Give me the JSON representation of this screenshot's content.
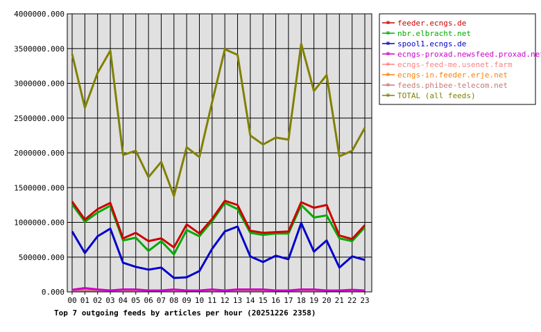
{
  "chart_data": {
    "type": "line",
    "title": "Top 7 outgoing feeds by articles per hour (20251226 2358)",
    "xlabel": "",
    "ylabel": "",
    "ylim": [
      0,
      4000000
    ],
    "grid": true,
    "legend_position": "right",
    "categories": [
      "00",
      "01",
      "02",
      "03",
      "04",
      "05",
      "06",
      "07",
      "08",
      "09",
      "10",
      "11",
      "12",
      "13",
      "14",
      "15",
      "16",
      "17",
      "18",
      "19",
      "20",
      "21",
      "22",
      "23"
    ],
    "y_ticks": [
      "0.000",
      "500000.000",
      "1000000.000",
      "1500000.000",
      "2000000.000",
      "2500000.000",
      "3000000.000",
      "3500000.000",
      "4000000.000"
    ],
    "series": [
      {
        "name": "feeder.ecngs.de",
        "color": "#cc0000",
        "values": [
          1300000,
          1040000,
          1190000,
          1280000,
          770000,
          850000,
          730000,
          770000,
          640000,
          970000,
          840000,
          1050000,
          1310000,
          1250000,
          880000,
          850000,
          860000,
          870000,
          1290000,
          1210000,
          1250000,
          810000,
          760000,
          960000
        ]
      },
      {
        "name": "nbr.elbracht.net",
        "color": "#00aa00",
        "values": [
          1260000,
          1010000,
          1140000,
          1240000,
          740000,
          780000,
          590000,
          730000,
          540000,
          890000,
          800000,
          1020000,
          1280000,
          1190000,
          850000,
          820000,
          840000,
          840000,
          1250000,
          1070000,
          1100000,
          770000,
          730000,
          930000
        ]
      },
      {
        "name": "spool1.ecngs.de",
        "color": "#0000cc",
        "values": [
          870000,
          560000,
          800000,
          910000,
          420000,
          360000,
          320000,
          350000,
          200000,
          210000,
          300000,
          620000,
          870000,
          940000,
          510000,
          430000,
          520000,
          470000,
          990000,
          580000,
          740000,
          350000,
          510000,
          460000
        ]
      },
      {
        "name": "ecngs-proxad.newsfeed.proxad.net",
        "color": "#cc00cc",
        "values": [
          30000,
          55000,
          35000,
          20000,
          35000,
          35000,
          20000,
          20000,
          35000,
          20000,
          20000,
          35000,
          20000,
          35000,
          35000,
          35000,
          20000,
          20000,
          35000,
          35000,
          20000,
          20000,
          30000,
          20000
        ]
      },
      {
        "name": "ecngs-feed-me.usenet.farm",
        "color": "#ff8080",
        "values": [
          20000,
          20000,
          20000,
          20000,
          20000,
          20000,
          20000,
          20000,
          20000,
          20000,
          20000,
          20000,
          20000,
          20000,
          20000,
          20000,
          20000,
          20000,
          20000,
          20000,
          20000,
          20000,
          20000,
          20000
        ]
      },
      {
        "name": "ecngs-in.feeder.erje.net",
        "color": "#ff8000",
        "values": [
          15000,
          15000,
          15000,
          15000,
          15000,
          15000,
          15000,
          15000,
          15000,
          15000,
          15000,
          15000,
          15000,
          15000,
          15000,
          15000,
          15000,
          15000,
          15000,
          15000,
          15000,
          15000,
          15000,
          15000
        ]
      },
      {
        "name": "feeds.phibee-telecom.net",
        "color": "#cc7777",
        "values": [
          18000,
          18000,
          18000,
          18000,
          18000,
          18000,
          18000,
          18000,
          18000,
          18000,
          18000,
          18000,
          18000,
          18000,
          18000,
          18000,
          18000,
          18000,
          18000,
          18000,
          18000,
          18000,
          18000,
          18000
        ]
      },
      {
        "name": "TOTAL (all feeds)",
        "color": "#808000",
        "values": [
          3420000,
          2650000,
          3150000,
          3470000,
          1970000,
          2030000,
          1650000,
          1870000,
          1380000,
          2080000,
          1940000,
          2730000,
          3490000,
          3410000,
          2250000,
          2120000,
          2220000,
          2190000,
          3570000,
          2890000,
          3120000,
          1950000,
          2030000,
          2360000
        ]
      }
    ]
  }
}
